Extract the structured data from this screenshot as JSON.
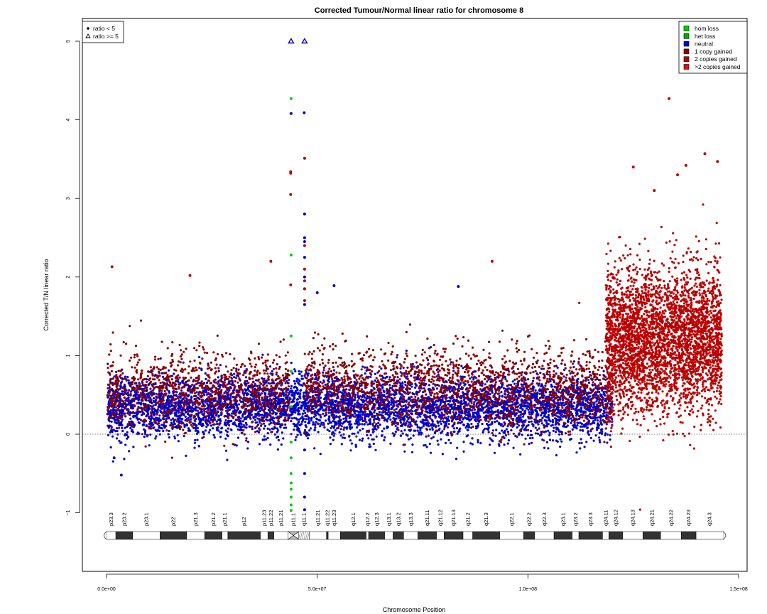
{
  "chart_data": {
    "type": "scatter",
    "title": "Corrected Tumour/Normal linear ratio for chromosome  8",
    "xlabel": "Chromosome Position",
    "ylabel": "Corrected T/N linear ratio",
    "xlim": [
      0,
      150000000
    ],
    "ylim": [
      -1.8,
      5.2
    ],
    "x_ticks": [
      0,
      50000000,
      100000000,
      150000000
    ],
    "x_tick_labels": [
      "0.0e+00",
      "5.0e+07",
      "1.0e+08",
      "1.5e+08"
    ],
    "y_ticks": [
      -1,
      0,
      1,
      2,
      3,
      4,
      5
    ],
    "y_tick_labels": [
      "−1",
      "0",
      "1",
      "2",
      "3",
      "4",
      "5"
    ],
    "baseline": 0,
    "grid": false,
    "legend_shape": {
      "placement": "top-left",
      "entries": [
        {
          "symbol": "filled-circle",
          "label": "ratio < 5"
        },
        {
          "symbol": "open-triangle",
          "label": "ratio >= 5"
        }
      ]
    },
    "legend_state": {
      "placement": "top-right",
      "entries": [
        {
          "label": "hom loss",
          "color": "#00cc00"
        },
        {
          "label": "het loss",
          "color": "#00aa00"
        },
        {
          "label": "neutral",
          "color": "#0000cc"
        },
        {
          "label": "1 copy gained",
          "color": "#8b0000"
        },
        {
          "label": "2 copies gained",
          "color": "#bb0000"
        },
        {
          "label": ">2 copies gained",
          "color": "#dd1111"
        }
      ]
    },
    "series": [
      {
        "name": "neutral",
        "color": "#0000cc",
        "segments": [
          {
            "x_start": 200000,
            "x_end": 120000000,
            "y_mean": 0.35,
            "y_sd": 0.2
          }
        ]
      },
      {
        "name": "1 copy gained",
        "color": "#8b0000",
        "segments": [
          {
            "x_start": 200000,
            "x_end": 43500000,
            "y_mean": 0.55,
            "y_sd": 0.25
          },
          {
            "x_start": 47000000,
            "x_end": 120000000,
            "y_mean": 0.6,
            "y_sd": 0.25
          }
        ]
      },
      {
        "name": "2 copies gained",
        "color": "#bb0000",
        "segments": [
          {
            "x_start": 118500000,
            "x_end": 146000000,
            "y_mean": 1.2,
            "y_sd": 0.45
          }
        ]
      },
      {
        "name": "hom loss",
        "color": "#00cc00",
        "points": [
          {
            "x": 43800000,
            "y": 4.27
          },
          {
            "x": 43800000,
            "y": 2.28
          },
          {
            "x": 43800000,
            "y": 1.25
          },
          {
            "x": 43800000,
            "y": 0.8
          },
          {
            "x": 43800000,
            "y": 0.35
          },
          {
            "x": 43800000,
            "y": -0.1
          },
          {
            "x": 43800000,
            "y": -0.3
          },
          {
            "x": 43800000,
            "y": -0.5
          },
          {
            "x": 43800000,
            "y": -0.62
          },
          {
            "x": 43800000,
            "y": -0.7
          },
          {
            "x": 43800000,
            "y": -0.8
          },
          {
            "x": 43800000,
            "y": -0.9
          },
          {
            "x": 43800000,
            "y": -0.97
          }
        ]
      },
      {
        "name": "outliers",
        "color": "#0000cc",
        "points": [
          {
            "x": 43800000,
            "y": 4.08
          },
          {
            "x": 46900000,
            "y": 4.09
          },
          {
            "x": 47000000,
            "y": 2.8
          },
          {
            "x": 47000000,
            "y": 2.5
          },
          {
            "x": 47000000,
            "y": 2.45
          },
          {
            "x": 47000000,
            "y": 2.25
          },
          {
            "x": 47000000,
            "y": 2.0
          },
          {
            "x": 47000000,
            "y": 1.85
          },
          {
            "x": 47000000,
            "y": 1.65
          },
          {
            "x": 47000000,
            "y": -0.2
          },
          {
            "x": 47000000,
            "y": -0.5
          },
          {
            "x": 47000000,
            "y": -0.8
          },
          {
            "x": 47000000,
            "y": -0.96
          },
          {
            "x": 54000000,
            "y": 1.89
          },
          {
            "x": 50000000,
            "y": 1.8
          },
          {
            "x": 83500000,
            "y": 1.88
          },
          {
            "x": 1800000,
            "y": -0.3
          },
          {
            "x": 3500000,
            "y": -0.52
          }
        ]
      },
      {
        "name": "high outliers",
        "color": "#bb0000",
        "points": [
          {
            "x": 43700000,
            "y": 3.34
          },
          {
            "x": 43700000,
            "y": 3.32
          },
          {
            "x": 43700000,
            "y": 3.05
          },
          {
            "x": 43700000,
            "y": 1.9
          },
          {
            "x": 47000000,
            "y": 3.51
          },
          {
            "x": 47000000,
            "y": 2.4
          },
          {
            "x": 47000000,
            "y": 2.1
          },
          {
            "x": 47000000,
            "y": 1.95
          },
          {
            "x": 47000000,
            "y": 1.85
          },
          {
            "x": 47000000,
            "y": 1.7
          },
          {
            "x": 91500000,
            "y": 2.2
          },
          {
            "x": 1300000,
            "y": 2.13
          },
          {
            "x": 19800000,
            "y": 2.02
          },
          {
            "x": 39000000,
            "y": 2.2
          },
          {
            "x": 133500000,
            "y": 4.27
          },
          {
            "x": 142000000,
            "y": 3.57
          },
          {
            "x": 125000000,
            "y": 3.4
          },
          {
            "x": 145000000,
            "y": 3.47
          },
          {
            "x": 137500000,
            "y": 3.42
          },
          {
            "x": 130000000,
            "y": 3.1
          },
          {
            "x": 135500000,
            "y": 3.3
          }
        ]
      }
    ],
    "triangles": [
      {
        "x": 43800000,
        "y": 5.0
      },
      {
        "x": 47000000,
        "y": 5.0
      }
    ],
    "cytobands": [
      {
        "name": "p23.3",
        "start": 0,
        "end": 2200000,
        "stain": "white"
      },
      {
        "name": "p23.2",
        "start": 2200000,
        "end": 6200000,
        "stain": "dark"
      },
      {
        "name": "p23.1",
        "start": 6200000,
        "end": 12700000,
        "stain": "white"
      },
      {
        "name": "p22",
        "start": 12700000,
        "end": 19000000,
        "stain": "dark"
      },
      {
        "name": "p21.3",
        "start": 19000000,
        "end": 23300000,
        "stain": "white"
      },
      {
        "name": "p21.2",
        "start": 23300000,
        "end": 27400000,
        "stain": "dark"
      },
      {
        "name": "p21.1",
        "start": 27400000,
        "end": 28800000,
        "stain": "white"
      },
      {
        "name": "p12",
        "start": 28800000,
        "end": 36500000,
        "stain": "dark"
      },
      {
        "name": "p11.23",
        "start": 36500000,
        "end": 38300000,
        "stain": "white"
      },
      {
        "name": "p11.22",
        "start": 38300000,
        "end": 39700000,
        "stain": "dark"
      },
      {
        "name": "p11.21",
        "start": 39700000,
        "end": 43100000,
        "stain": "white"
      },
      {
        "name": "p11.1",
        "start": 43100000,
        "end": 45600000,
        "stain": "centromere"
      },
      {
        "name": "q11.1",
        "start": 45600000,
        "end": 48100000,
        "stain": "stalk"
      },
      {
        "name": "q11.21",
        "start": 48100000,
        "end": 52200000,
        "stain": "white"
      },
      {
        "name": "q11.22",
        "start": 52200000,
        "end": 52600000,
        "stain": "dark"
      },
      {
        "name": "q11.23",
        "start": 52600000,
        "end": 55500000,
        "stain": "white"
      },
      {
        "name": "q12.1",
        "start": 55500000,
        "end": 61600000,
        "stain": "dark"
      },
      {
        "name": "q12.2",
        "start": 61600000,
        "end": 62200000,
        "stain": "white"
      },
      {
        "name": "q12.3",
        "start": 62200000,
        "end": 66000000,
        "stain": "dark"
      },
      {
        "name": "q13.1",
        "start": 66000000,
        "end": 68000000,
        "stain": "white"
      },
      {
        "name": "q13.2",
        "start": 68000000,
        "end": 70500000,
        "stain": "dark"
      },
      {
        "name": "q13.3",
        "start": 70500000,
        "end": 73900000,
        "stain": "white"
      },
      {
        "name": "q21.11",
        "start": 73900000,
        "end": 78300000,
        "stain": "dark"
      },
      {
        "name": "q21.12",
        "start": 78300000,
        "end": 80100000,
        "stain": "white"
      },
      {
        "name": "q21.13",
        "start": 80100000,
        "end": 84600000,
        "stain": "dark"
      },
      {
        "name": "q21.2",
        "start": 84600000,
        "end": 86900000,
        "stain": "white"
      },
      {
        "name": "q21.3",
        "start": 86900000,
        "end": 93300000,
        "stain": "dark"
      },
      {
        "name": "q22.1",
        "start": 93300000,
        "end": 99000000,
        "stain": "white"
      },
      {
        "name": "q22.2",
        "start": 99000000,
        "end": 101600000,
        "stain": "dark"
      },
      {
        "name": "q22.3",
        "start": 101600000,
        "end": 106200000,
        "stain": "white"
      },
      {
        "name": "q23.1",
        "start": 106200000,
        "end": 110500000,
        "stain": "dark"
      },
      {
        "name": "q23.2",
        "start": 110500000,
        "end": 112100000,
        "stain": "white"
      },
      {
        "name": "q23.3",
        "start": 112100000,
        "end": 117700000,
        "stain": "dark"
      },
      {
        "name": "q24.11",
        "start": 117700000,
        "end": 119200000,
        "stain": "white"
      },
      {
        "name": "q24.12",
        "start": 119200000,
        "end": 122500000,
        "stain": "dark"
      },
      {
        "name": "q24.13",
        "start": 122500000,
        "end": 127300000,
        "stain": "white"
      },
      {
        "name": "q24.21",
        "start": 127300000,
        "end": 131500000,
        "stain": "dark"
      },
      {
        "name": "q24.22",
        "start": 131500000,
        "end": 136400000,
        "stain": "white"
      },
      {
        "name": "q24.23",
        "start": 136400000,
        "end": 139900000,
        "stain": "dark"
      },
      {
        "name": "q24.3",
        "start": 139900000,
        "end": 146364022,
        "stain": "white"
      }
    ]
  }
}
